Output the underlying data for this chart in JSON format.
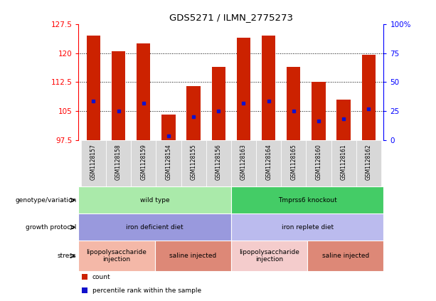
{
  "title": "GDS5271 / ILMN_2775273",
  "samples": [
    "GSM1128157",
    "GSM1128158",
    "GSM1128159",
    "GSM1128154",
    "GSM1128155",
    "GSM1128156",
    "GSM1128163",
    "GSM1128164",
    "GSM1128165",
    "GSM1128160",
    "GSM1128161",
    "GSM1128162"
  ],
  "bar_heights": [
    124.5,
    120.5,
    122.5,
    104.0,
    111.5,
    116.5,
    124.0,
    124.5,
    116.5,
    112.5,
    108.0,
    119.5
  ],
  "blue_markers": [
    107.5,
    105.0,
    107.0,
    98.5,
    103.5,
    105.0,
    107.0,
    107.5,
    105.0,
    102.5,
    103.0,
    105.5
  ],
  "y_min": 97.5,
  "y_max": 127.5,
  "y_ticks_left": [
    97.5,
    105.0,
    112.5,
    120.0,
    127.5
  ],
  "y_ticks_right_vals": [
    0,
    25,
    50,
    75,
    100
  ],
  "y_ticks_right_pos": [
    97.5,
    105.0,
    112.5,
    120.0,
    127.5
  ],
  "bar_color": "#cc2200",
  "blue_color": "#1111cc",
  "annotation_rows": [
    {
      "label": "genotype/variation",
      "segments": [
        {
          "text": "wild type",
          "span": [
            0,
            6
          ],
          "color": "#aaeaaa"
        },
        {
          "text": "Tmprss6 knockout",
          "span": [
            6,
            12
          ],
          "color": "#44cc66"
        }
      ]
    },
    {
      "label": "growth protocol",
      "segments": [
        {
          "text": "iron deficient diet",
          "span": [
            0,
            6
          ],
          "color": "#9999dd"
        },
        {
          "text": "iron replete diet",
          "span": [
            6,
            12
          ],
          "color": "#bbbbee"
        }
      ]
    },
    {
      "label": "stress",
      "segments": [
        {
          "text": "lipopolysaccharide\ninjection",
          "span": [
            0,
            3
          ],
          "color": "#f4b8a8"
        },
        {
          "text": "saline injected",
          "span": [
            3,
            6
          ],
          "color": "#dd8877"
        },
        {
          "text": "lipopolysaccharide\ninjection",
          "span": [
            6,
            9
          ],
          "color": "#f4cccc"
        },
        {
          "text": "saline injected",
          "span": [
            9,
            12
          ],
          "color": "#dd8877"
        }
      ]
    }
  ],
  "legend_items": [
    {
      "color": "#cc2200",
      "label": "count"
    },
    {
      "color": "#1111cc",
      "label": "percentile rank within the sample"
    }
  ]
}
